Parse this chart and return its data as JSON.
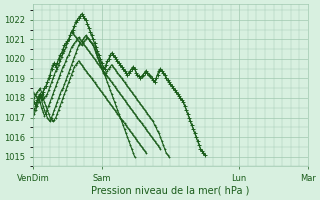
{
  "title": "",
  "xlabel": "Pression niveau de la mer( hPa )",
  "ylabel": "",
  "bg_color": "#d8f0e0",
  "grid_color": "#a0c8b0",
  "line_color": "#1a5c1a",
  "ylim": [
    1014.5,
    1022.8
  ],
  "yticks": [
    1015,
    1016,
    1017,
    1018,
    1019,
    1020,
    1021,
    1022
  ],
  "xtick_labels": [
    "VenDim",
    "Sam",
    "Lun",
    "Mar"
  ],
  "xtick_positions": [
    0,
    48,
    144,
    192
  ],
  "total_points": 216,
  "series": [
    [
      1017.5,
      1017.8,
      1017.6,
      1017.9,
      1018.1,
      1018.2,
      1018.0,
      1018.3,
      1018.5,
      1018.6,
      1018.8,
      1019.0,
      1019.2,
      1019.5,
      1019.7,
      1019.8,
      1019.6,
      1019.8,
      1020.0,
      1020.2,
      1020.3,
      1020.5,
      1020.7,
      1020.8,
      1020.9,
      1021.0,
      1021.2,
      1021.4,
      1021.5,
      1021.7,
      1021.9,
      1022.0,
      1022.1,
      1022.2,
      1022.3,
      1022.2,
      1022.1,
      1022.0,
      1021.8,
      1021.6,
      1021.4,
      1021.2,
      1021.0,
      1020.8,
      1020.6,
      1020.4,
      1020.2,
      1020.0,
      1019.8,
      1019.6,
      1019.5,
      1019.7,
      1019.9,
      1020.0,
      1020.2,
      1020.3,
      1020.2,
      1020.1,
      1020.0,
      1019.9,
      1019.8,
      1019.7,
      1019.6,
      1019.5,
      1019.4,
      1019.3,
      1019.2,
      1019.3,
      1019.4,
      1019.5,
      1019.6,
      1019.5,
      1019.3,
      1019.2,
      1019.1,
      1019.0,
      1019.1,
      1019.2,
      1019.3,
      1019.4,
      1019.3,
      1019.2,
      1019.1,
      1019.0,
      1018.9,
      1018.8,
      1019.0,
      1019.2,
      1019.4,
      1019.5,
      1019.4,
      1019.3,
      1019.2,
      1019.0,
      1018.9,
      1018.8,
      1018.7,
      1018.6,
      1018.5,
      1018.4,
      1018.3,
      1018.2,
      1018.1,
      1018.0,
      1017.9,
      1017.8,
      1017.6,
      1017.4,
      1017.2,
      1017.0,
      1016.8,
      1016.6,
      1016.4,
      1016.2,
      1016.0,
      1015.8,
      1015.6,
      1015.4,
      1015.3,
      1015.2,
      1015.1
    ],
    [
      1017.2,
      1017.4,
      1017.6,
      1017.8,
      1018.0,
      1018.2,
      1017.9,
      1017.6,
      1017.4,
      1017.2,
      1017.0,
      1016.9,
      1016.8,
      1017.0,
      1017.2,
      1017.4,
      1017.6,
      1017.8,
      1018.0,
      1018.2,
      1018.4,
      1018.5,
      1018.7,
      1018.9,
      1019.1,
      1019.3,
      1019.5,
      1019.7,
      1019.9,
      1020.1,
      1020.3,
      1020.5,
      1020.7,
      1020.8,
      1020.9,
      1021.0,
      1021.1,
      1021.2,
      1021.1,
      1021.0,
      1020.9,
      1020.8,
      1020.7,
      1020.6,
      1020.4,
      1020.2,
      1020.0,
      1019.8,
      1019.6,
      1019.4,
      1019.2,
      1019.0,
      1018.8,
      1018.6,
      1018.4,
      1018.2,
      1018.0,
      1017.8,
      1017.6,
      1017.4,
      1017.2,
      1017.0,
      1016.8,
      1016.6,
      1016.4,
      1016.2,
      1016.0,
      1015.8,
      1015.6,
      1015.4,
      1015.2,
      1015.0
    ],
    [
      1017.8,
      1018.0,
      1018.2,
      1018.3,
      1018.4,
      1018.5,
      1018.3,
      1018.2,
      1018.0,
      1018.1,
      1018.2,
      1018.4,
      1018.6,
      1018.8,
      1019.0,
      1019.2,
      1019.4,
      1019.5,
      1019.7,
      1019.9,
      1020.1,
      1020.3,
      1020.4,
      1020.6,
      1020.8,
      1021.0,
      1021.2,
      1021.4,
      1021.3,
      1021.2,
      1021.1,
      1021.0,
      1020.9,
      1020.8,
      1020.7,
      1020.8,
      1020.9,
      1021.0,
      1021.1,
      1021.0,
      1020.9,
      1020.8,
      1020.7,
      1020.5,
      1020.3,
      1020.1,
      1019.9,
      1019.7,
      1019.5,
      1019.3,
      1019.2,
      1019.3,
      1019.4,
      1019.5,
      1019.6,
      1019.7,
      1019.6,
      1019.5,
      1019.4,
      1019.3,
      1019.2,
      1019.1,
      1019.0,
      1018.9,
      1018.8,
      1018.7,
      1018.6,
      1018.5,
      1018.4,
      1018.3,
      1018.2,
      1018.1,
      1018.0,
      1017.9,
      1017.8,
      1017.7,
      1017.6,
      1017.5,
      1017.4,
      1017.3,
      1017.2,
      1017.1,
      1017.0,
      1016.9,
      1016.8,
      1016.6,
      1016.5,
      1016.3,
      1016.2,
      1016.0,
      1015.8,
      1015.6,
      1015.4,
      1015.2,
      1015.1,
      1015.0
    ],
    [
      1018.3,
      1018.2,
      1018.1,
      1018.0,
      1017.9,
      1017.8,
      1017.5,
      1017.3,
      1017.1,
      1017.2,
      1017.4,
      1017.6,
      1017.8,
      1018.0,
      1018.2,
      1018.4,
      1018.6,
      1018.8,
      1019.0,
      1019.2,
      1019.4,
      1019.6,
      1019.7,
      1019.9,
      1020.1,
      1020.2,
      1020.4,
      1020.6,
      1020.7,
      1020.8,
      1020.9,
      1021.0,
      1021.1,
      1021.0,
      1020.9,
      1020.8,
      1020.7,
      1020.6,
      1020.5,
      1020.4,
      1020.3,
      1020.2,
      1020.1,
      1020.0,
      1019.9,
      1019.8,
      1019.7,
      1019.6,
      1019.5,
      1019.4,
      1019.3,
      1019.2,
      1019.1,
      1019.0,
      1018.9,
      1018.8,
      1018.7,
      1018.6,
      1018.5,
      1018.4,
      1018.3,
      1018.2,
      1018.1,
      1018.0,
      1017.9,
      1017.8,
      1017.7,
      1017.6,
      1017.5,
      1017.4,
      1017.3,
      1017.2,
      1017.1,
      1017.0,
      1016.9,
      1016.8,
      1016.7,
      1016.6,
      1016.5,
      1016.4,
      1016.3,
      1016.2,
      1016.1,
      1016.0,
      1015.9,
      1015.8,
      1015.7,
      1015.6,
      1015.5,
      1015.4
    ],
    [
      1017.0,
      1017.2,
      1017.4,
      1017.6,
      1017.8,
      1018.0,
      1018.2,
      1018.0,
      1017.8,
      1017.6,
      1017.4,
      1017.2,
      1017.0,
      1016.9,
      1016.8,
      1016.9,
      1017.0,
      1017.2,
      1017.4,
      1017.6,
      1017.8,
      1018.0,
      1018.2,
      1018.4,
      1018.6,
      1018.8,
      1019.0,
      1019.2,
      1019.4,
      1019.6,
      1019.7,
      1019.8,
      1019.9,
      1019.8,
      1019.7,
      1019.6,
      1019.5,
      1019.4,
      1019.3,
      1019.2,
      1019.1,
      1019.0,
      1018.9,
      1018.8,
      1018.7,
      1018.6,
      1018.5,
      1018.4,
      1018.3,
      1018.2,
      1018.1,
      1018.0,
      1017.9,
      1017.8,
      1017.7,
      1017.6,
      1017.5,
      1017.4,
      1017.3,
      1017.2,
      1017.1,
      1017.0,
      1016.9,
      1016.8,
      1016.7,
      1016.6,
      1016.5,
      1016.4,
      1016.3,
      1016.2,
      1016.1,
      1016.0,
      1015.9,
      1015.8,
      1015.7,
      1015.6,
      1015.5,
      1015.4,
      1015.3,
      1015.2
    ]
  ]
}
